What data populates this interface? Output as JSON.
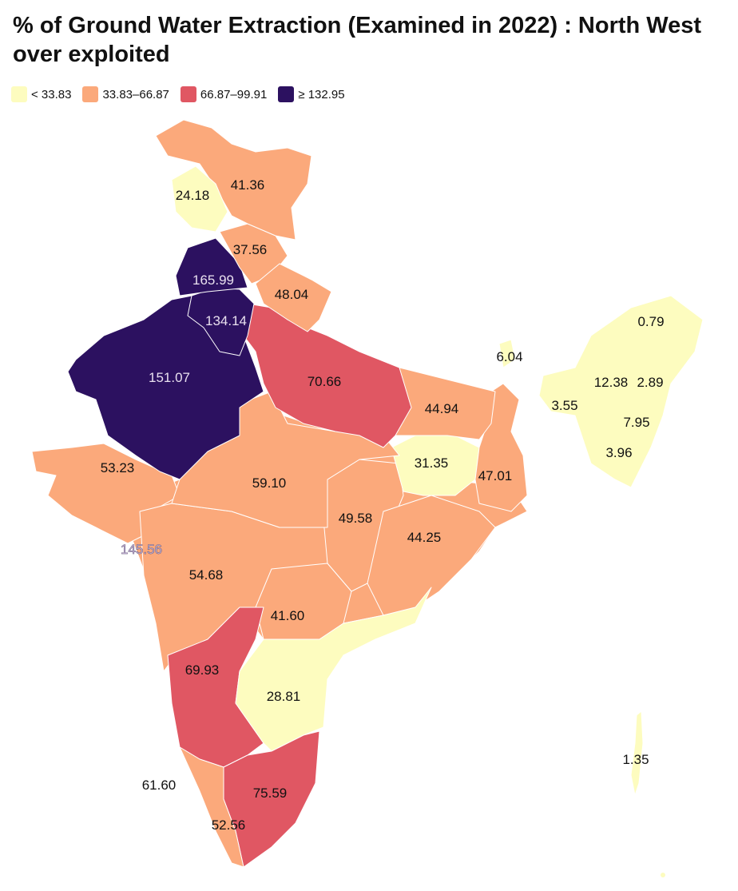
{
  "title": "% of Ground Water Extraction (Examined in 2022) : North West over exploited",
  "colors": {
    "low": "#fdfcbf",
    "mid": "#fba97b",
    "high": "#e05763",
    "top": "#2c1160"
  },
  "legend": [
    {
      "label": "< 33.83",
      "color": "#fdfcbf"
    },
    {
      "label": "33.83–66.87",
      "color": "#fba97b"
    },
    {
      "label": "66.87–99.91",
      "color": "#e05763"
    },
    {
      "label": "≥ 132.95",
      "color": "#2c1160"
    }
  ],
  "values": {
    "jk": "41.36",
    "ladakh": "24.18",
    "himachal": "37.56",
    "punjab": "165.99",
    "haryana": "134.14",
    "uttarakhand": "48.04",
    "rajasthan": "151.07",
    "up": "70.66",
    "bihar": "44.94",
    "sikkim": "6.04",
    "arunachal": "0.79",
    "assam": "12.38",
    "nagaland": "2.89",
    "meghalaya": "3.55",
    "manipur": "7.95",
    "mizoram": "3.96",
    "gujarat": "53.23",
    "mp": "59.10",
    "jharkhand": "31.35",
    "westbengal": "47.01",
    "chhattisgarh": "49.58",
    "odisha": "44.25",
    "daman": "145.56",
    "maharashtra": "54.68",
    "telangana": "41.60",
    "karnataka": "69.93",
    "andhra": "28.81",
    "tamilnadu": "75.59",
    "kerala": "52.56",
    "lakshadweep": "61.60",
    "andaman": "1.35"
  }
}
